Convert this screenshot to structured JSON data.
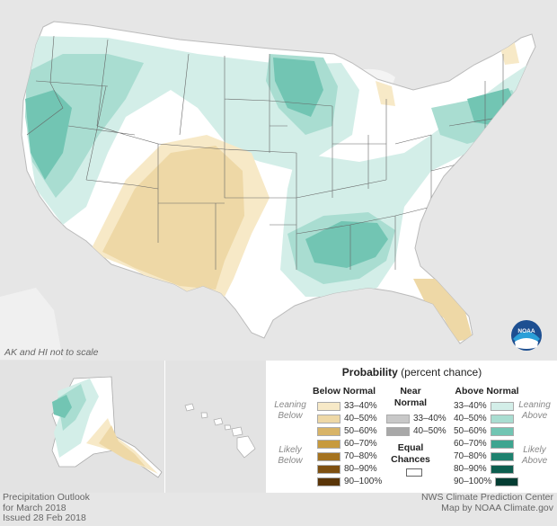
{
  "map": {
    "scale_note": "AK and HI not to scale",
    "noaa_logo_text": "NOAA"
  },
  "legend": {
    "title_bold": "Probability",
    "title_rest": " (percent chance)",
    "below": {
      "header": "Below Normal",
      "leaning": [
        "Leaning",
        "Below"
      ],
      "likely": [
        "Likely",
        "Below"
      ],
      "items": [
        {
          "label": "33–40%",
          "color": "#f7e9c7"
        },
        {
          "label": "40–50%",
          "color": "#eed8a6"
        },
        {
          "label": "50–60%",
          "color": "#d8b468"
        },
        {
          "label": "60–70%",
          "color": "#c79a3d"
        },
        {
          "label": "70–80%",
          "color": "#a5731f"
        },
        {
          "label": "80–90%",
          "color": "#7e5011"
        },
        {
          "label": "90–100%",
          "color": "#5a3508"
        }
      ]
    },
    "near": {
      "header": [
        "Near",
        "Normal"
      ],
      "items": [
        {
          "label": "33–40%",
          "color": "#c8c8c8"
        },
        {
          "label": "40–50%",
          "color": "#a8a8a8"
        }
      ]
    },
    "equal": {
      "label": [
        "Equal",
        "Chances"
      ],
      "color": "#ffffff"
    },
    "above": {
      "header": "Above Normal",
      "leaning": [
        "Leaning",
        "Above"
      ],
      "likely": [
        "Likely",
        "Above"
      ],
      "items": [
        {
          "label": "33–40%",
          "color": "#d3eee8"
        },
        {
          "label": "40–50%",
          "color": "#a9ddd1"
        },
        {
          "label": "50–60%",
          "color": "#72c5b3"
        },
        {
          "label": "60–70%",
          "color": "#3ea590"
        },
        {
          "label": "70–80%",
          "color": "#1e826f"
        },
        {
          "label": "80–90%",
          "color": "#0d5e4f"
        },
        {
          "label": "90–100%",
          "color": "#043d33"
        }
      ]
    }
  },
  "footer": {
    "left": [
      "Precipitation Outlook",
      "for March 2018",
      "Issued 28 Feb 2018"
    ],
    "right": [
      "NWS Climate Prediction Center",
      "Map by NOAA Climate.gov"
    ]
  }
}
